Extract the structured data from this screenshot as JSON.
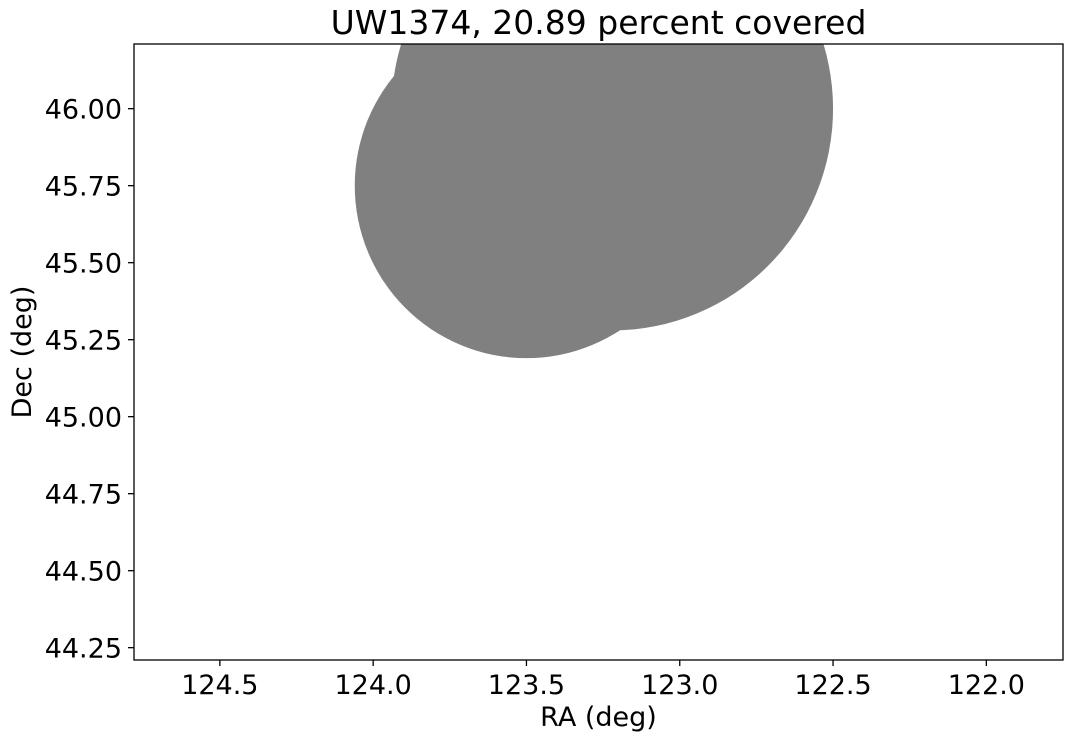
{
  "chart_data": {
    "type": "scatter",
    "title": "UW1374, 20.89 percent covered",
    "xlabel": "RA (deg)",
    "ylabel": "Dec (deg)",
    "xlim": [
      124.78,
      121.75
    ],
    "ylim": [
      44.21,
      46.21
    ],
    "x_inverted": true,
    "xticks": [
      124.5,
      124.0,
      123.5,
      123.0,
      122.5,
      122.0
    ],
    "xtick_labels": [
      "124.5",
      "124.0",
      "123.5",
      "123.0",
      "122.5",
      "122.0"
    ],
    "yticks": [
      44.25,
      44.5,
      44.75,
      45.0,
      45.25,
      45.5,
      45.75,
      46.0
    ],
    "ytick_labels": [
      "44.25",
      "44.50",
      "44.75",
      "45.00",
      "45.25",
      "45.50",
      "45.75",
      "46.00"
    ],
    "grid": false,
    "fill_color": "#808080",
    "coverage_percent": 20.89,
    "regions": [
      {
        "ra": 123.5,
        "dec": 45.75,
        "radius_deg": 0.56
      },
      {
        "ra": 123.22,
        "dec": 46.0,
        "radius_deg": 0.72
      }
    ]
  }
}
